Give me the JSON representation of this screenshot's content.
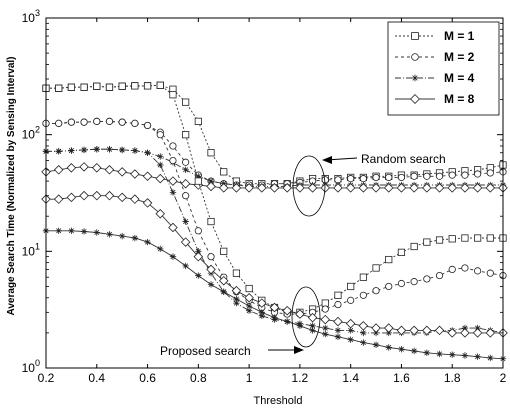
{
  "chart_data": {
    "type": "line",
    "xlabel": "Threshold",
    "ylabel": "Average Search Time (Normalized by Sensing Interval)",
    "xlim": [
      0.2,
      2
    ],
    "ylim": [
      1,
      1000
    ],
    "yscale": "log",
    "grid": false,
    "legend_position": "top-right",
    "x_ticks": [
      "0.2",
      "0.4",
      "0.6",
      "0.8",
      "1",
      "1.2",
      "1.4",
      "1.6",
      "1.8",
      "2"
    ],
    "y_ticks": [
      {
        "base": "10",
        "exp": "0"
      },
      {
        "base": "10",
        "exp": "1"
      },
      {
        "base": "10",
        "exp": "2"
      },
      {
        "base": "10",
        "exp": "3"
      }
    ],
    "annotations": {
      "random": "Random search",
      "proposed": "Proposed search"
    },
    "x": [
      0.2,
      0.25,
      0.3,
      0.35,
      0.4,
      0.45,
      0.5,
      0.55,
      0.6,
      0.65,
      0.7,
      0.75,
      0.8,
      0.85,
      0.9,
      0.95,
      1.0,
      1.05,
      1.1,
      1.15,
      1.2,
      1.25,
      1.3,
      1.35,
      1.4,
      1.45,
      1.5,
      1.55,
      1.6,
      1.65,
      1.7,
      1.75,
      1.8,
      1.85,
      1.9,
      1.95,
      2.0
    ],
    "series": [
      {
        "name": "M = 1",
        "group": "random",
        "marker": "square",
        "dash": "2,2",
        "values": [
          250,
          250,
          255,
          255,
          260,
          255,
          260,
          262,
          262,
          265,
          245,
          190,
          130,
          70,
          48,
          40,
          38,
          38,
          38,
          38,
          40,
          42,
          42,
          42,
          43,
          43,
          44,
          44,
          45,
          45,
          46,
          47,
          48,
          49,
          50,
          52,
          55
        ]
      },
      {
        "name": "M = 2",
        "group": "random",
        "marker": "circle",
        "dash": "3,3",
        "values": [
          125,
          125,
          128,
          128,
          130,
          130,
          128,
          125,
          120,
          105,
          80,
          58,
          45,
          40,
          38,
          37,
          37,
          37,
          38,
          38,
          39,
          40,
          41,
          41,
          42,
          42,
          43,
          43,
          43,
          44,
          44,
          44,
          45,
          45,
          46,
          47,
          48
        ]
      },
      {
        "name": "M = 4",
        "group": "random",
        "marker": "star",
        "dash": "6,2,1,2",
        "values": [
          72,
          72,
          73,
          74,
          75,
          75,
          74,
          73,
          70,
          65,
          58,
          50,
          44,
          40,
          38,
          37,
          36,
          36,
          36,
          36,
          37,
          37,
          37,
          37,
          37,
          37,
          37,
          37,
          37,
          37,
          37,
          37,
          37,
          37,
          37,
          37,
          37
        ]
      },
      {
        "name": "M = 8",
        "group": "random",
        "marker": "diamond",
        "dash": "",
        "values": [
          48,
          50,
          52,
          53,
          52,
          50,
          48,
          46,
          44,
          42,
          40,
          38,
          37,
          36,
          35,
          35,
          35,
          35,
          35,
          35,
          35,
          35,
          35,
          35,
          35,
          35,
          35,
          35,
          35,
          35,
          35,
          35,
          35,
          35,
          35,
          35,
          35
        ]
      },
      {
        "name": "M = 1",
        "group": "proposed",
        "marker": "square",
        "dash": "2,2",
        "values": [
          250,
          250,
          255,
          255,
          260,
          255,
          260,
          262,
          262,
          265,
          220,
          100,
          40,
          18,
          10,
          6.5,
          4.8,
          3.8,
          3.3,
          3.0,
          3.0,
          3.2,
          3.6,
          4.2,
          5.0,
          6.0,
          7.2,
          8.5,
          9.8,
          11,
          12,
          12.5,
          12.8,
          13,
          13,
          13,
          13
        ]
      },
      {
        "name": "M = 2",
        "group": "proposed",
        "marker": "circle",
        "dash": "3,3",
        "values": [
          125,
          125,
          128,
          128,
          130,
          130,
          128,
          125,
          120,
          100,
          60,
          30,
          15,
          9,
          6,
          4.5,
          3.8,
          3.3,
          3.0,
          2.9,
          2.9,
          3.0,
          3.2,
          3.5,
          3.8,
          4.2,
          4.6,
          5.0,
          5.3,
          5.5,
          5.8,
          6.2,
          7.0,
          7.2,
          6.8,
          6.5,
          6.2
        ]
      },
      {
        "name": "M = 4",
        "group": "proposed",
        "marker": "star",
        "dash": "6,2,1,2",
        "values": [
          72,
          72,
          73,
          74,
          75,
          75,
          74,
          73,
          70,
          55,
          32,
          18,
          10,
          6.5,
          4.5,
          3.6,
          3.1,
          2.8,
          2.6,
          2.5,
          2.4,
          2.3,
          2.2,
          2.1,
          2.1,
          2.0,
          2.0,
          2.0,
          2.0,
          2.0,
          2.0,
          2.1,
          2.1,
          2.2,
          2.2,
          2.1,
          2.0
        ]
      },
      {
        "name": "M = 8",
        "group": "proposed",
        "marker": "diamond",
        "dash": "",
        "values": [
          28,
          28,
          29,
          30,
          30,
          30,
          29,
          28,
          26,
          21,
          16,
          12,
          9,
          7,
          5.6,
          4.6,
          4.0,
          3.6,
          3.3,
          3.1,
          2.9,
          2.7,
          2.6,
          2.5,
          2.4,
          2.3,
          2.2,
          2.2,
          2.1,
          2.1,
          2.1,
          2.1,
          2.0,
          2.0,
          2.0,
          2.0,
          2.0
        ]
      },
      {
        "name": "",
        "group": "proposed",
        "marker": "star",
        "dash": "",
        "values": [
          15,
          15,
          15,
          14.8,
          14.5,
          14,
          13.5,
          13,
          12,
          10.5,
          9,
          7.5,
          6.2,
          5.2,
          4.5,
          3.9,
          3.4,
          3.0,
          2.7,
          2.5,
          2.3,
          2.1,
          1.95,
          1.85,
          1.75,
          1.65,
          1.58,
          1.5,
          1.45,
          1.4,
          1.35,
          1.32,
          1.3,
          1.28,
          1.25,
          1.22,
          1.2
        ]
      }
    ]
  }
}
